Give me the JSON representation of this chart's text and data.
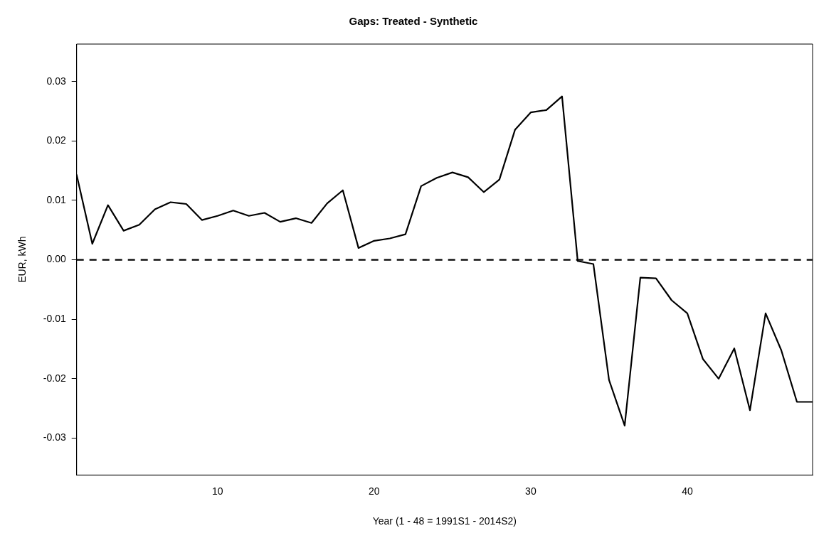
{
  "chart_data": {
    "type": "line",
    "title": "Gaps: Treated - Synthetic",
    "xlabel": "Year (1 - 48 = 1991S1 - 2014S2)",
    "ylabel": "EUR, kWh",
    "x": [
      1,
      2,
      3,
      4,
      5,
      6,
      7,
      8,
      9,
      10,
      11,
      12,
      13,
      14,
      15,
      16,
      17,
      18,
      19,
      20,
      21,
      22,
      23,
      24,
      25,
      26,
      27,
      28,
      29,
      30,
      31,
      32,
      33,
      34,
      35,
      36,
      37,
      38,
      39,
      40,
      41,
      42,
      43,
      44,
      45,
      46,
      47,
      48
    ],
    "series": [
      {
        "color": "#000000",
        "values": [
          0.0143,
          0.0027,
          0.0092,
          0.0049,
          0.0059,
          0.0085,
          0.0097,
          0.0094,
          0.0067,
          0.0074,
          0.0083,
          0.0074,
          0.0079,
          0.0064,
          0.007,
          0.0062,
          0.0095,
          0.0117,
          0.002,
          0.0032,
          0.0036,
          0.0043,
          0.0124,
          0.0138,
          0.0147,
          0.0139,
          0.0114,
          0.0135,
          0.0219,
          0.0248,
          0.0252,
          0.0275,
          -0.0002,
          -0.0007,
          -0.0202,
          -0.0279,
          -0.003,
          -0.0031,
          -0.0068,
          -0.009,
          -0.0167,
          -0.02,
          -0.0149,
          -0.0253,
          -0.009,
          -0.0152,
          -0.0239,
          -0.0239
        ]
      }
    ],
    "xlim": [
      1,
      48
    ],
    "xticks": [
      10,
      20,
      30,
      40
    ],
    "ylim": [
      -0.0362,
      0.0363
    ],
    "yticks": [
      {
        "value": -0.03,
        "label": "-0.03"
      },
      {
        "value": -0.02,
        "label": "-0.02"
      },
      {
        "value": -0.01,
        "label": "-0.01"
      },
      {
        "value": 0,
        "label": "0.00"
      },
      {
        "value": 0.01,
        "label": "0.01"
      },
      {
        "value": 0.02,
        "label": "0.02"
      },
      {
        "value": 0.03,
        "label": "0.03"
      }
    ],
    "ref_lines": [
      {
        "axis": "y",
        "value": 0,
        "color": "#000000",
        "line_style": "dashed"
      }
    ],
    "grid": false,
    "legend": false,
    "marker": "none",
    "line_style": "solid"
  }
}
